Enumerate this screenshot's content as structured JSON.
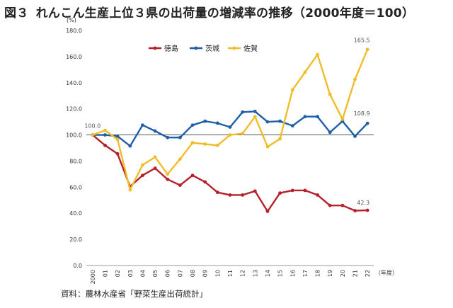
{
  "title": {
    "figure_label": "図３",
    "text": "れんこん生産上位３県の出荷量の増減率の推移（2000年度＝100）"
  },
  "source": "資料：農林水産省「野菜生産出荷統計」",
  "chart_data": {
    "type": "line",
    "yunit": "(%)",
    "xunit": "（年度）",
    "ylim": [
      0,
      180
    ],
    "yticks": [
      "0.0",
      "20.0",
      "40.0",
      "60.0",
      "80.0",
      "100.0",
      "120.0",
      "140.0",
      "160.0",
      "180.0"
    ],
    "grid": false,
    "reference_line": 100,
    "legend_position": "top-left",
    "categories": [
      "2000",
      "01",
      "02",
      "03",
      "04",
      "05",
      "06",
      "07",
      "08",
      "09",
      "10",
      "11",
      "12",
      "13",
      "14",
      "15",
      "16",
      "17",
      "18",
      "19",
      "20",
      "21",
      "22"
    ],
    "series": [
      {
        "name": "徳島",
        "color": "#b5202a",
        "values": [
          100.0,
          92,
          85.5,
          60.5,
          69,
          74.5,
          66,
          61.5,
          69,
          64,
          56,
          54,
          54,
          57,
          41.5,
          55.5,
          57.5,
          57.5,
          54,
          46,
          46,
          42,
          42.3
        ]
      },
      {
        "name": "茨城",
        "color": "#1f5fa8",
        "values": [
          100.0,
          100,
          99,
          91.5,
          107.5,
          103,
          98,
          98,
          107.5,
          110.5,
          109,
          106,
          117.5,
          118,
          110,
          110.5,
          107,
          114,
          114,
          102,
          110.5,
          99,
          108.9
        ]
      },
      {
        "name": "佐賀",
        "color": "#f0bd2a",
        "values": [
          100.0,
          103.5,
          96.5,
          58,
          77,
          83,
          70,
          81.5,
          94,
          93,
          92,
          100,
          101,
          114,
          91,
          97,
          134.5,
          148,
          161.5,
          131,
          112,
          142.5,
          165.5
        ]
      }
    ],
    "annotations": [
      {
        "series": 0,
        "index": 0,
        "label": "100.0"
      },
      {
        "series": 2,
        "index": 22,
        "label": "165.5"
      },
      {
        "series": 1,
        "index": 22,
        "label": "108.9"
      },
      {
        "series": 0,
        "index": 22,
        "label": "42.3"
      }
    ]
  }
}
